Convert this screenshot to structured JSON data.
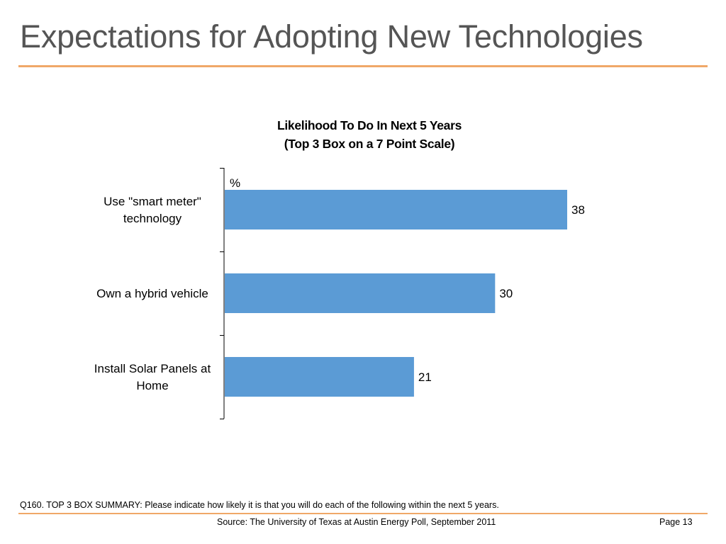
{
  "slide": {
    "title": "Expectations for Adopting New Technologies",
    "footnote": "Q160. TOP 3 BOX SUMMARY: Please indicate how likely it is that you will do each of the following within the next 5 years.",
    "source": "Source: The University of Texas at Austin Energy Poll, September 2011",
    "page": "Page 13"
  },
  "colors": {
    "bar": "#5b9bd5",
    "accent_rule": "#f0a868",
    "title_text": "#555555"
  },
  "chart_data": {
    "type": "bar",
    "orientation": "horizontal",
    "title": "Likelihood To Do In Next 5 Years",
    "subtitle": "(Top 3 Box on a 7 Point Scale)",
    "unit_label": "%",
    "categories": [
      [
        "Use \"smart meter\"",
        "technology"
      ],
      [
        "Own a hybrid vehicle"
      ],
      [
        "Install Solar Panels at",
        "Home"
      ]
    ],
    "values": [
      38,
      30,
      21
    ],
    "data_labels": [
      "38",
      "30",
      "21"
    ],
    "xlim": [
      0,
      42
    ],
    "grid": false,
    "legend": "none"
  }
}
